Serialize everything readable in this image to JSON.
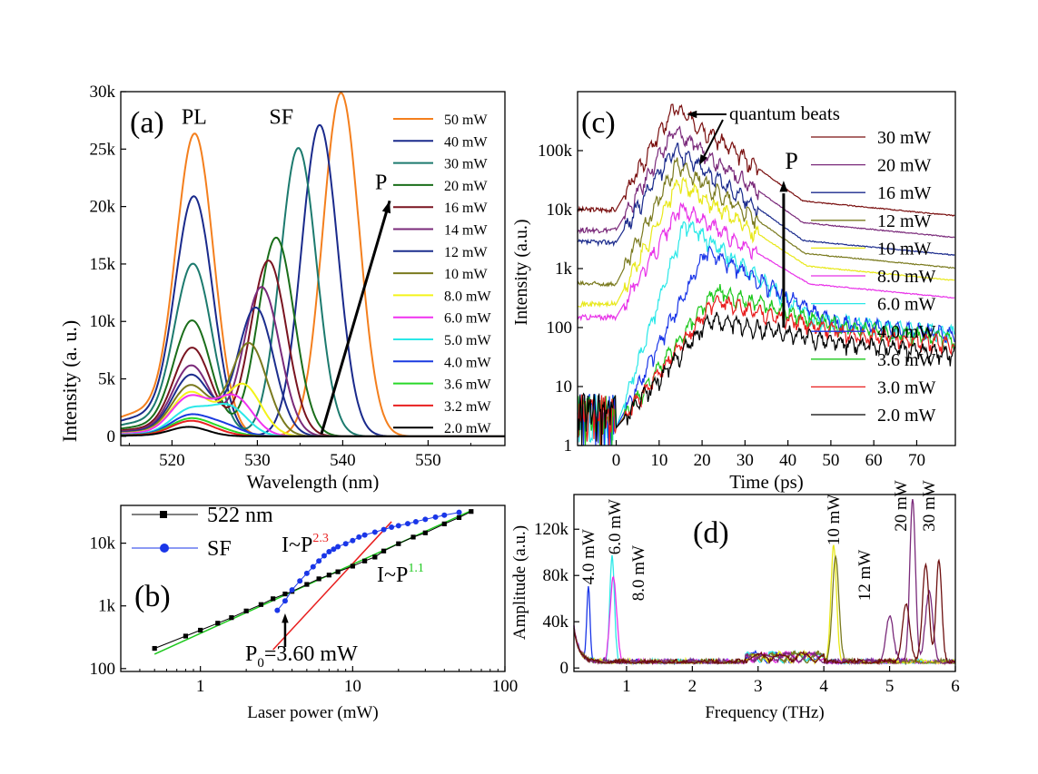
{
  "chart_data": [
    {
      "id": "a",
      "type": "line",
      "panel_label": "(a)",
      "xlabel": "Wavelength (nm)",
      "ylabel": "Intensity (a. u.)",
      "xlim": [
        514,
        559
      ],
      "ylim": [
        -800,
        30000
      ],
      "xticks": [
        {
          "v": 520,
          "label": "520"
        },
        {
          "v": 530,
          "label": "530"
        },
        {
          "v": 540,
          "label": "540"
        },
        {
          "v": 550,
          "label": "550"
        }
      ],
      "yticks": [
        {
          "v": 0,
          "label": "0"
        },
        {
          "v": 5000,
          "label": "5k"
        },
        {
          "v": 10000,
          "label": "10k"
        },
        {
          "v": 15000,
          "label": "15k"
        },
        {
          "v": 20000,
          "label": "20k"
        },
        {
          "v": 25000,
          "label": "25k"
        },
        {
          "v": 30000,
          "label": "30k"
        }
      ],
      "annotations": [
        {
          "text": "PL",
          "x": 522.6,
          "y": 27200
        },
        {
          "text": "SF",
          "x": 532.8,
          "y": 27200
        },
        {
          "text": "P",
          "x": 544.5,
          "y": 21500
        }
      ],
      "arrow": {
        "from": [
          537.5,
          200
        ],
        "to": [
          545.5,
          20500
        ]
      },
      "series": [
        {
          "name": "50 mW",
          "color": "#f47f1d",
          "pl_center": 522.7,
          "pl_amp": 25600,
          "sf_center": 539.8,
          "sf_amp": 29900
        },
        {
          "name": "40 mW",
          "color": "#1a2a8c",
          "pl_center": 522.6,
          "pl_amp": 20300,
          "sf_center": 537.3,
          "sf_amp": 27100
        },
        {
          "name": "30 mW",
          "color": "#1c7a6e",
          "pl_center": 522.5,
          "pl_amp": 14600,
          "sf_center": 534.8,
          "sf_amp": 25100
        },
        {
          "name": "20 mW",
          "color": "#1a6e1a",
          "pl_center": 522.4,
          "pl_amp": 9800,
          "sf_center": 532.2,
          "sf_amp": 17300
        },
        {
          "name": "16 mW",
          "color": "#7a1420",
          "pl_center": 522.4,
          "pl_amp": 7500,
          "sf_center": 531.3,
          "sf_amp": 15300
        },
        {
          "name": "14 mW",
          "color": "#7a2a7a",
          "pl_center": 522.3,
          "pl_amp": 6000,
          "sf_center": 530.5,
          "sf_amp": 13000
        },
        {
          "name": "12 mW",
          "color": "#1c2e8e",
          "pl_center": 522.3,
          "pl_amp": 5200,
          "sf_center": 529.8,
          "sf_amp": 11200
        },
        {
          "name": "10 mW",
          "color": "#7a7a1e",
          "pl_center": 522.2,
          "pl_amp": 4300,
          "sf_center": 529.0,
          "sf_amp": 8100
        },
        {
          "name": "8.0 mW",
          "color": "#f3f31a",
          "pl_center": 522.2,
          "pl_amp": 3700,
          "sf_center": 528.3,
          "sf_amp": 4500
        },
        {
          "name": "6.0 mW",
          "color": "#f032f0",
          "pl_center": 522.1,
          "pl_amp": 3300,
          "sf_center": 527.3,
          "sf_amp": 3400
        },
        {
          "name": "5.0 mW",
          "color": "#2ae8e8",
          "pl_center": 522.1,
          "pl_amp": 2200,
          "sf_center": 526.7,
          "sf_amp": 2500
        },
        {
          "name": "4.0 mW",
          "color": "#1a3ae0",
          "pl_center": 522.0,
          "pl_amp": 1700,
          "sf_center": 526.0,
          "sf_amp": 900
        },
        {
          "name": "3.6 mW",
          "color": "#28d828",
          "pl_center": 522.0,
          "pl_amp": 1400,
          "sf_center": 525.5,
          "sf_amp": 500
        },
        {
          "name": "3.2 mW",
          "color": "#e82020",
          "pl_center": 522.0,
          "pl_amp": 1200,
          "sf_center": 525.0,
          "sf_amp": 300
        },
        {
          "name": "2.0 mW",
          "color": "#000000",
          "pl_center": 522.0,
          "pl_amp": 800,
          "sf_center": 525.0,
          "sf_amp": 0
        }
      ]
    },
    {
      "id": "b",
      "type": "scatter",
      "panel_label": "(b)",
      "xlabel": "Laser power (mW)",
      "ylabel": "",
      "xscale": "log",
      "yscale": "log",
      "xlim": [
        0.3,
        100
      ],
      "ylim": [
        90,
        40000
      ],
      "xticks": [
        {
          "v": 1,
          "label": "1"
        },
        {
          "v": 10,
          "label": "10"
        },
        {
          "v": 100,
          "label": "100"
        }
      ],
      "yticks": [
        {
          "v": 100,
          "label": "100"
        },
        {
          "v": 1000,
          "label": "1k"
        },
        {
          "v": 10000,
          "label": "10k"
        }
      ],
      "fits": [
        {
          "label": "I~P",
          "exponent": "2.3",
          "color": "#e81e1e",
          "x": [
            3.0,
            18
          ],
          "y": [
            200,
            22000
          ]
        },
        {
          "label": "I~P",
          "exponent": "1.1",
          "color": "#1cc81c",
          "x": [
            0.5,
            60
          ],
          "y": [
            170,
            33000
          ]
        }
      ],
      "annotation": {
        "text": "P",
        "sub": "0",
        "rest": "=3.60 mW",
        "arrow_x": 3.6,
        "arrow_y": 600
      },
      "series": [
        {
          "name": "522 nm",
          "color": "#000000",
          "marker": "square",
          "x": [
            0.5,
            0.8,
            1.0,
            1.3,
            1.6,
            2.0,
            2.5,
            3.0,
            3.6,
            4.0,
            5.0,
            6.0,
            7.0,
            8.0,
            10,
            12,
            14,
            16,
            20,
            25,
            30,
            40,
            50,
            60
          ],
          "y": [
            210,
            330,
            410,
            530,
            650,
            830,
            1050,
            1300,
            1550,
            1700,
            2200,
            2700,
            3100,
            3500,
            4300,
            5200,
            6000,
            7500,
            9800,
            12500,
            14600,
            20300,
            25600,
            32000
          ]
        },
        {
          "name": "SF",
          "color": "#1a36e8",
          "marker": "circle",
          "x": [
            3.2,
            3.6,
            4.0,
            4.5,
            5.0,
            5.5,
            6.0,
            6.5,
            7.0,
            7.5,
            8.0,
            9.0,
            10,
            11,
            12,
            14,
            16,
            18,
            20,
            23,
            26,
            30,
            35,
            40,
            50
          ],
          "y": [
            850,
            1200,
            1800,
            2500,
            3300,
            4200,
            5200,
            6300,
            7300,
            8000,
            8800,
            9800,
            11000,
            12500,
            13500,
            15000,
            16500,
            18000,
            19000,
            20500,
            22000,
            24000,
            26000,
            28000,
            31000
          ]
        }
      ]
    },
    {
      "id": "c",
      "type": "line",
      "panel_label": "(c)",
      "xlabel": "Time (ps)",
      "ylabel": "Intensity (a.u.)",
      "yscale": "log",
      "xlim": [
        -9,
        79
      ],
      "ylim": [
        1,
        1000000
      ],
      "xticks": [
        {
          "v": 0,
          "label": "0"
        },
        {
          "v": 10,
          "label": "10"
        },
        {
          "v": 20,
          "label": "20"
        },
        {
          "v": 30,
          "label": "30"
        },
        {
          "v": 40,
          "label": "40"
        },
        {
          "v": 50,
          "label": "50"
        },
        {
          "v": 60,
          "label": "60"
        },
        {
          "v": 70,
          "label": "70"
        }
      ],
      "yticks": [
        {
          "v": 1,
          "label": "1"
        },
        {
          "v": 10,
          "label": "10"
        },
        {
          "v": 100,
          "label": "100"
        },
        {
          "v": 1000,
          "label": "1k"
        },
        {
          "v": 10000,
          "label": "10k"
        },
        {
          "v": 100000,
          "label": "100k"
        }
      ],
      "annotations": [
        {
          "text": "quantum beats",
          "x": 33,
          "y": 450000
        },
        {
          "text": "P",
          "x": 40,
          "y": 70000
        }
      ],
      "arrow": {
        "from": [
          39,
          100
        ],
        "to": [
          39,
          25000
        ]
      },
      "series": [
        {
          "name": "30 mW",
          "color": "#7a1010",
          "base": 10000,
          "peak": 550000,
          "peak_t": 13.5,
          "tail": 14000,
          "noisy_until": 33
        },
        {
          "name": "20 mW",
          "color": "#7a2a7a",
          "base": 4500,
          "peak": 220000,
          "peak_t": 13.5,
          "tail": 6000,
          "noisy_until": 33
        },
        {
          "name": "16 mW",
          "color": "#1a2a8c",
          "base": 2800,
          "peak": 110000,
          "peak_t": 13.5,
          "tail": 3000,
          "noisy_until": 33
        },
        {
          "name": "12 mW",
          "color": "#7a7a1e",
          "base": 550,
          "peak": 60000,
          "peak_t": 14,
          "tail": 1800,
          "noisy_until": 33
        },
        {
          "name": "10 mW",
          "color": "#e8e81a",
          "base": 250,
          "peak": 30000,
          "peak_t": 14.5,
          "tail": 1100,
          "noisy_until": 33
        },
        {
          "name": "8.0 mW",
          "color": "#e832e8",
          "base": 150,
          "peak": 11000,
          "peak_t": 15,
          "tail": 550,
          "noisy_until": 33
        },
        {
          "name": "6.0 mW",
          "color": "#2ae8e8",
          "base": 2,
          "peak": 6000,
          "peak_t": 16,
          "tail": 140,
          "noisy_until": 79
        },
        {
          "name": "4.0 mW",
          "color": "#1a36e8",
          "base": 2,
          "peak": 2000,
          "peak_t": 21,
          "tail": 120,
          "noisy_until": 79
        },
        {
          "name": "3.6 mW",
          "color": "#1cc81c",
          "base": 2,
          "peak": 420,
          "peak_t": 23,
          "tail": 100,
          "noisy_until": 79
        },
        {
          "name": "3.0 mW",
          "color": "#e81e1e",
          "base": 2,
          "peak": 280,
          "peak_t": 23,
          "tail": 80,
          "noisy_until": 79
        },
        {
          "name": "2.0 mW",
          "color": "#000000",
          "base": 2,
          "peak": 140,
          "peak_t": 22,
          "tail": 55,
          "noisy_until": 79
        }
      ]
    },
    {
      "id": "d",
      "type": "line",
      "panel_label": "(d)",
      "xlabel": "Frequency (THz)",
      "ylabel": "Amplitude (a.u.)",
      "xlim": [
        0.2,
        6
      ],
      "ylim": [
        -3000,
        150000
      ],
      "xticks": [
        {
          "v": 1,
          "label": "1"
        },
        {
          "v": 2,
          "label": "2"
        },
        {
          "v": 3,
          "label": "3"
        },
        {
          "v": 4,
          "label": "4"
        },
        {
          "v": 5,
          "label": "5"
        },
        {
          "v": 6,
          "label": "6"
        }
      ],
      "yticks": [
        {
          "v": 0,
          "label": "0"
        },
        {
          "v": 40000,
          "label": "40k"
        },
        {
          "v": 80000,
          "label": "80k"
        },
        {
          "v": 120000,
          "label": "120k"
        }
      ],
      "peak_labels": [
        {
          "text": "4.0 mW",
          "x": 0.42,
          "y": 72000
        },
        {
          "text": "6.0 mW",
          "x": 0.82,
          "y": 98000
        },
        {
          "text": "8.0 mW",
          "x": 1.18,
          "y": 58000
        },
        {
          "text": "10 mW",
          "x": 4.15,
          "y": 106000
        },
        {
          "text": "12 mW",
          "x": 4.62,
          "y": 58000
        },
        {
          "text": "20 mW",
          "x": 5.17,
          "y": 118000
        },
        {
          "text": "30 mW",
          "x": 5.6,
          "y": 118000
        }
      ],
      "series": [
        {
          "name": "4.0 mW",
          "color": "#1a36e8",
          "peaks": [
            [
              0.42,
              64000,
              0.035
            ]
          ]
        },
        {
          "name": "6.0 mW",
          "color": "#2ae8e8",
          "peaks": [
            [
              0.78,
              92000,
              0.05
            ]
          ]
        },
        {
          "name": "8.0 mW",
          "color": "#e832e8",
          "peaks": [
            [
              0.8,
              72000,
              0.07
            ]
          ]
        },
        {
          "name": "10 mW",
          "color": "#e8e81a",
          "peaks": [
            [
              4.15,
              100000,
              0.06
            ]
          ]
        },
        {
          "name": "12 mW",
          "color": "#7a7a1e",
          "peaks": [
            [
              4.18,
              92000,
              0.07
            ]
          ]
        },
        {
          "name": "20 mW",
          "color": "#7a2a7a",
          "peaks": [
            [
              5.35,
              142000,
              0.06
            ],
            [
              5.0,
              40000,
              0.08
            ],
            [
              5.6,
              60000,
              0.08
            ]
          ]
        },
        {
          "name": "30 mW",
          "color": "#6e1010",
          "peaks": [
            [
              5.55,
              85000,
              0.07
            ],
            [
              5.75,
              88000,
              0.06
            ],
            [
              5.25,
              50000,
              0.08
            ]
          ]
        }
      ]
    }
  ]
}
